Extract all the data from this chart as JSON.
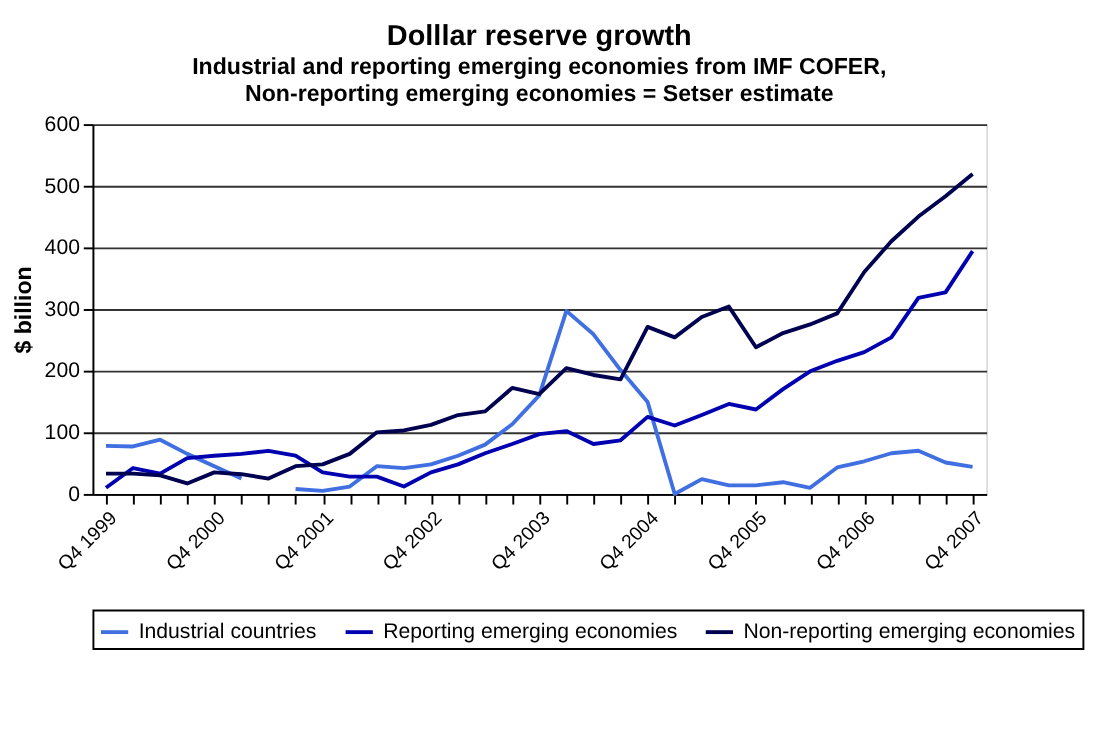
{
  "chart_data": {
    "type": "line",
    "title": "Dolllar reserve growth",
    "subtitle": [
      "Industrial and reporting emerging economies from IMF COFER,",
      "Non-reporting emerging economies = Setser estimate"
    ],
    "ylabel": "$ billion",
    "categories": [
      "Q4 1999",
      null,
      null,
      null,
      "Q4 2000",
      null,
      null,
      null,
      "Q4 2001",
      null,
      null,
      null,
      "Q4 2002",
      null,
      null,
      null,
      "Q4 2003",
      null,
      null,
      null,
      "Q4 2004",
      null,
      null,
      null,
      "Q4 2005",
      null,
      null,
      null,
      "Q4 2006",
      null,
      null,
      null,
      "Q4 2007"
    ],
    "series": [
      {
        "name": "Industrial countries",
        "color": "#3f6fe0",
        "values": [
          78,
          77,
          88,
          65,
          45,
          25,
          null,
          8,
          5,
          12,
          45,
          42,
          48,
          62,
          80,
          113,
          160,
          297,
          259,
          201,
          149,
          0,
          24,
          14,
          14,
          19,
          10,
          43,
          53,
          66,
          70,
          51,
          44
        ]
      },
      {
        "name": "Reporting emerging economies",
        "color": "#0000b0",
        "values": [
          10,
          42,
          33,
          58,
          62,
          65,
          70,
          62,
          35,
          28,
          28,
          12,
          35,
          48,
          66,
          81,
          97,
          102,
          81,
          87,
          125,
          111,
          128,
          146,
          137,
          170,
          199,
          216,
          230,
          254,
          318,
          327,
          394
        ]
      },
      {
        "name": "Non-reporting emerging economies",
        "color": "#000050",
        "values": [
          33,
          33,
          30,
          17,
          35,
          32,
          25,
          45,
          48,
          65,
          100,
          103,
          112,
          128,
          134,
          172,
          162,
          204,
          193,
          186,
          271,
          254,
          287,
          304,
          238,
          261,
          275,
          293,
          360,
          410,
          450,
          483,
          519
        ]
      }
    ],
    "ylim": [
      0,
      600
    ],
    "yticks": [
      0,
      100,
      200,
      300,
      400,
      500,
      600
    ],
    "grid": "y",
    "legend": "bottom",
    "marker": "none",
    "line_style": "solid"
  }
}
